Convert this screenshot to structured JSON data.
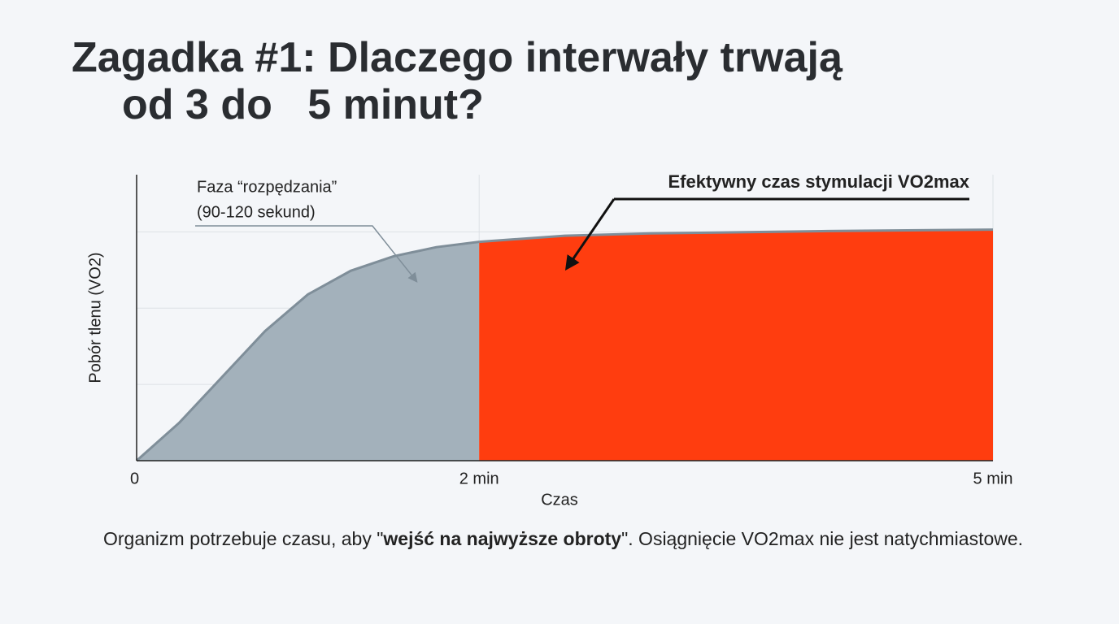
{
  "title": {
    "lines": [
      "Zagadka #1: Dlaczego interwały trwają",
      "od 3 do   5 minut?"
    ]
  },
  "chart_data": {
    "type": "area",
    "x": [
      0,
      0.25,
      0.5,
      0.75,
      1,
      1.25,
      1.5,
      1.75,
      2,
      2.5,
      3,
      4,
      5
    ],
    "series": [
      {
        "color": "#a3b1bb",
        "values": [
          0,
          0.5,
          1.1,
          1.7,
          2.18,
          2.49,
          2.68,
          2.8,
          2.87,
          null,
          null,
          null,
          null
        ]
      },
      {
        "color": "#ff3d0f",
        "values": [
          null,
          null,
          null,
          null,
          null,
          null,
          null,
          null,
          2.87,
          2.95,
          2.98,
          3.01,
          3.03
        ]
      }
    ],
    "line_color": "#7f8e99",
    "xlim": [
      0,
      5
    ],
    "xticks": [
      0,
      {
        "value": 2,
        "label": "2 min"
      },
      {
        "value": 5,
        "label": "5 min"
      }
    ],
    "ylim": [
      0,
      3.75
    ],
    "yticks": [
      1,
      2,
      3
    ],
    "grid": true,
    "xlabel": "Czas",
    "ylabel": "Pobór tlenu (VO2)",
    "annotations": [
      {
        "lines": [
          "Faza “rozpędzania”",
          "(90-120 sekund)"
        ]
      },
      {
        "text": "Efektywny czas stymulacji VO2max"
      }
    ]
  },
  "caption": {
    "parts": [
      {
        "text": "Organizm potrzebuje czasu, aby \""
      },
      {
        "text": "wejść na najwyższe obroty",
        "bold": true
      },
      {
        "text": "\". Osiągnięcie VO2max nie jest natychmiastowe."
      }
    ]
  }
}
